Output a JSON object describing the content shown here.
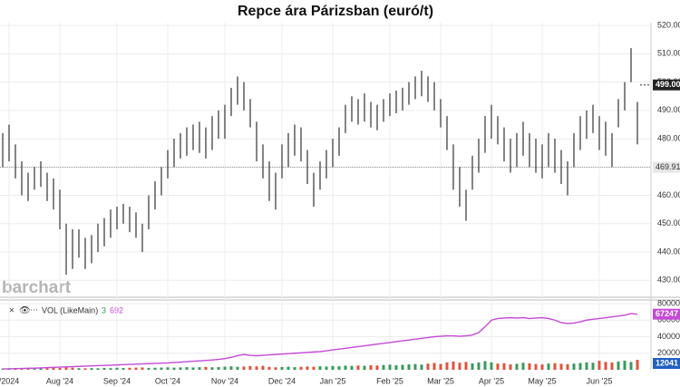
{
  "chart_data": {
    "type": "ohlc",
    "title": "Repce ára Párizsban (euró/t)",
    "watermark": "barchart",
    "price": {
      "low": [
        470,
        472,
        466,
        460,
        458,
        462,
        463,
        458,
        455,
        448,
        432,
        434,
        438,
        434,
        436,
        440,
        442,
        445,
        448,
        450,
        447,
        445,
        440,
        448,
        455,
        460,
        466,
        470,
        473,
        474,
        476,
        475,
        473,
        476,
        480,
        480,
        488,
        492,
        490,
        484,
        472,
        466,
        458,
        455,
        466,
        470,
        474,
        472,
        464,
        456,
        462,
        466,
        470,
        474,
        482,
        486,
        485,
        486,
        484,
        483,
        486,
        488,
        489,
        490,
        492,
        494,
        495,
        493,
        490,
        484,
        476,
        462,
        456,
        451,
        462,
        468,
        475,
        480,
        478,
        472,
        468,
        470,
        474,
        470,
        468,
        466,
        470,
        468,
        464,
        460,
        470,
        476,
        480,
        482,
        476,
        474,
        470,
        484,
        490,
        500,
        478
      ],
      "high": [
        482,
        485,
        478,
        472,
        468,
        470,
        472,
        468,
        466,
        462,
        450,
        448,
        448,
        445,
        446,
        450,
        452,
        455,
        456,
        457,
        456,
        454,
        450,
        460,
        465,
        470,
        476,
        480,
        482,
        484,
        485,
        486,
        484,
        488,
        490,
        492,
        498,
        502,
        500,
        494,
        486,
        478,
        472,
        468,
        478,
        482,
        485,
        484,
        476,
        468,
        472,
        476,
        480,
        484,
        492,
        495,
        494,
        496,
        493,
        492,
        494,
        496,
        497,
        498,
        500,
        502,
        504,
        502,
        500,
        494,
        488,
        478,
        470,
        462,
        474,
        480,
        488,
        492,
        488,
        484,
        480,
        482,
        486,
        482,
        480,
        478,
        482,
        480,
        476,
        472,
        482,
        488,
        490,
        492,
        488,
        486,
        482,
        494,
        500,
        512,
        493
      ],
      "color": "#333333",
      "ylim": [
        424,
        521
      ],
      "yticks": [
        {
          "value": 430,
          "label": "430.00"
        },
        {
          "value": 440,
          "label": "440.00"
        },
        {
          "value": 450,
          "label": "450.00"
        },
        {
          "value": 460,
          "label": "460.00"
        },
        {
          "value": 470,
          "label": "470.00"
        },
        {
          "value": 480,
          "label": "480.00"
        },
        {
          "value": 490,
          "label": "490.00"
        },
        {
          "value": 500,
          "label": "500.00"
        },
        {
          "value": 510,
          "label": "510.00"
        },
        {
          "value": 520,
          "label": "520.00"
        }
      ],
      "last_price": {
        "value": 499,
        "label": "499.00"
      },
      "reference_price": 469.91,
      "grid": true
    },
    "volume": {
      "legend_text": "VOL (LikeMain)",
      "legend_values": [
        3,
        692
      ],
      "series": [
        {
          "name": "open-interest",
          "color": "#c54ad6",
          "values": [
            1000,
            1200,
            1400,
            1600,
            1800,
            2000,
            2300,
            2600,
            2900,
            3200,
            3500,
            3800,
            4100,
            4400,
            4700,
            5000,
            5300,
            5600,
            5900,
            6200,
            6500,
            6800,
            7100,
            7400,
            7700,
            8000,
            8300,
            8800,
            9300,
            9800,
            10300,
            10800,
            11300,
            11800,
            12500,
            13500,
            15000,
            17000,
            18500,
            17500,
            17000,
            17500,
            18000,
            18500,
            19000,
            19500,
            20000,
            20500,
            21000,
            21500,
            22000,
            23000,
            24000,
            25000,
            26000,
            27000,
            28000,
            29000,
            30000,
            31000,
            32000,
            33000,
            34000,
            35000,
            36000,
            37000,
            38000,
            39000,
            40000,
            40500,
            41000,
            41000,
            40500,
            41000,
            42000,
            45000,
            52000,
            60000,
            62000,
            62500,
            63000,
            62500,
            63000,
            62000,
            62500,
            63000,
            62000,
            60000,
            57000,
            56000,
            56500,
            58000,
            60000,
            61000,
            62000,
            63000,
            64000,
            65000,
            66000,
            68000,
            67247
          ]
        },
        {
          "name": "volume",
          "up_color": "#3a9a5c",
          "down_color": "#e0533d",
          "values": [
            1500,
            1800,
            2200,
            1600,
            2000,
            1700,
            2400,
            1900,
            2600,
            2200,
            3000,
            2500,
            2000,
            1800,
            2100,
            1900,
            2300,
            2000,
            2500,
            2200,
            2400,
            2600,
            2800,
            2300,
            2500,
            2700,
            3000,
            2600,
            2900,
            3200,
            2800,
            3100,
            3500,
            3000,
            3300,
            3800,
            4200,
            3600,
            3900,
            4500,
            4100,
            4800,
            3500,
            3000,
            3400,
            3800,
            3200,
            3600,
            4000,
            3700,
            4200,
            3900,
            4600,
            4300,
            5000,
            4700,
            5200,
            4800,
            5500,
            5100,
            5800,
            6200,
            5400,
            6000,
            6600,
            7000,
            6300,
            7500,
            8200,
            7000,
            9000,
            10000,
            8500,
            9500,
            7800,
            8800,
            10500,
            9000,
            7500,
            8000,
            6500,
            7200,
            8500,
            7800,
            7000,
            6500,
            7600,
            8000,
            7200,
            6800,
            7500,
            8200,
            9000,
            8500,
            10800,
            9500,
            8800,
            10000,
            11000,
            9500,
            12041
          ]
        }
      ],
      "ylim": [
        0,
        82000
      ],
      "yticks": [
        20000,
        40000,
        60000,
        80000
      ]
    },
    "xticks": [
      {
        "value": 1,
        "label": "/2024"
      },
      {
        "value": 9,
        "label": "Aug '24"
      },
      {
        "value": 18,
        "label": "Sep '24"
      },
      {
        "value": 26,
        "label": "Oct '24"
      },
      {
        "value": 35,
        "label": "Nov '24"
      },
      {
        "value": 44,
        "label": "Dec '24"
      },
      {
        "value": 52,
        "label": "Jan '25"
      },
      {
        "value": 61,
        "label": "Feb '25"
      },
      {
        "value": 69,
        "label": "Mar '25"
      },
      {
        "value": 77,
        "label": "Apr '25"
      },
      {
        "value": 85,
        "label": "May '25"
      },
      {
        "value": 94,
        "label": "Jun '25"
      }
    ]
  }
}
